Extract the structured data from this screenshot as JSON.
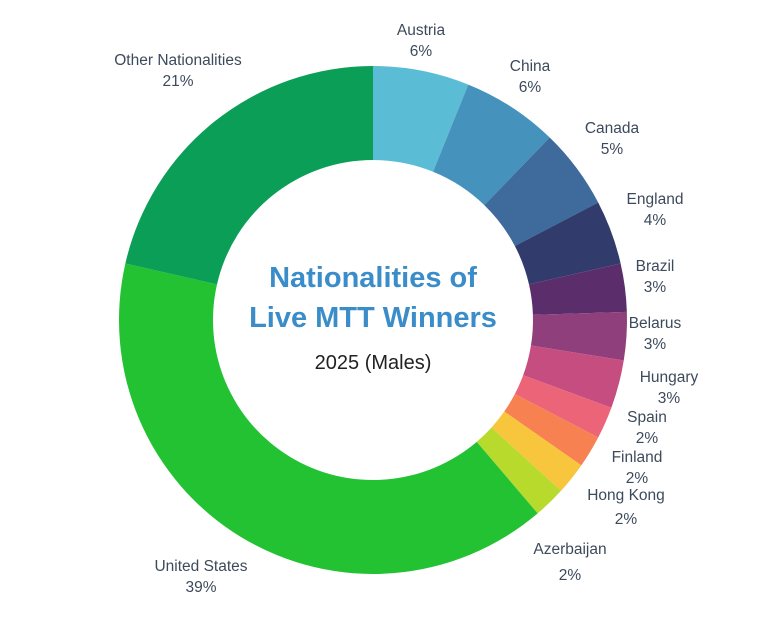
{
  "chart_data": {
    "type": "pie",
    "subtype": "donut",
    "title_line1": "Nationalities of",
    "title_line2": "Live MTT Winners",
    "subtitle": "2025 (Males)",
    "slices": [
      {
        "label": "Austria",
        "value": 6,
        "display": "6%",
        "color": "#5bbcd6"
      },
      {
        "label": "China",
        "value": 6,
        "display": "6%",
        "color": "#4593bd"
      },
      {
        "label": "Canada",
        "value": 5,
        "display": "5%",
        "color": "#3e6a9c"
      },
      {
        "label": "England",
        "value": 4,
        "display": "4%",
        "color": "#323c6c"
      },
      {
        "label": "Brazil",
        "value": 3,
        "display": "3%",
        "color": "#5b2e6b"
      },
      {
        "label": "Belarus",
        "value": 3,
        "display": "3%",
        "color": "#8f3f7c"
      },
      {
        "label": "Hungary",
        "value": 3,
        "display": "3%",
        "color": "#c64d80"
      },
      {
        "label": "Spain",
        "value": 2,
        "display": "2%",
        "color": "#ec6478"
      },
      {
        "label": "Finland",
        "value": 2,
        "display": "2%",
        "color": "#f88152"
      },
      {
        "label": "Hong Kong",
        "value": 2,
        "display": "2%",
        "color": "#f8c63c"
      },
      {
        "label": "Azerbaijan",
        "value": 2,
        "display": "2%",
        "color": "#b7da2c"
      },
      {
        "label": "United States",
        "value": 39,
        "display": "39%",
        "color": "#22c232"
      },
      {
        "label": "Other Nationalities",
        "value": 21,
        "display": "21%",
        "color": "#0b9e56"
      }
    ]
  }
}
